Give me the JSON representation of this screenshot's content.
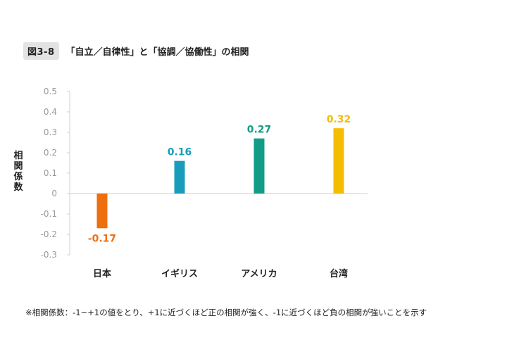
{
  "figure": {
    "badge": "図3-8",
    "title": "「自立／自律性」と「協調／協働性」の相関",
    "footnote": "※相関係数：-1~+1の値をとり、+1に近づくほど正の相関が強く、-1に近づくほど負の相関が強いことを示す"
  },
  "chart_data": {
    "type": "bar",
    "title": "「自立／自律性」と「協調／協働性」の相関",
    "ylabel": "相関係数",
    "xlabel": "",
    "categories": [
      "日本",
      "イギリス",
      "アメリカ",
      "台湾"
    ],
    "values": [
      -0.17,
      0.16,
      0.27,
      0.32
    ],
    "data_labels": [
      "-0.17",
      "0.16",
      "0.27",
      "0.32"
    ],
    "colors": [
      "#ee6f0f",
      "#179cbb",
      "#129c85",
      "#f5bd00"
    ],
    "ylim": [
      -0.3,
      0.5
    ],
    "yticks": [
      0.5,
      0.4,
      0.3,
      0.2,
      0.1,
      0,
      -0.1,
      -0.2,
      -0.3
    ],
    "ytick_labels": [
      "0.5",
      "0.4",
      "0.3",
      "0.2",
      "0.1",
      "0",
      "-0.1",
      "-0.2",
      "-0.3"
    ],
    "grid": false,
    "legend": "none"
  }
}
